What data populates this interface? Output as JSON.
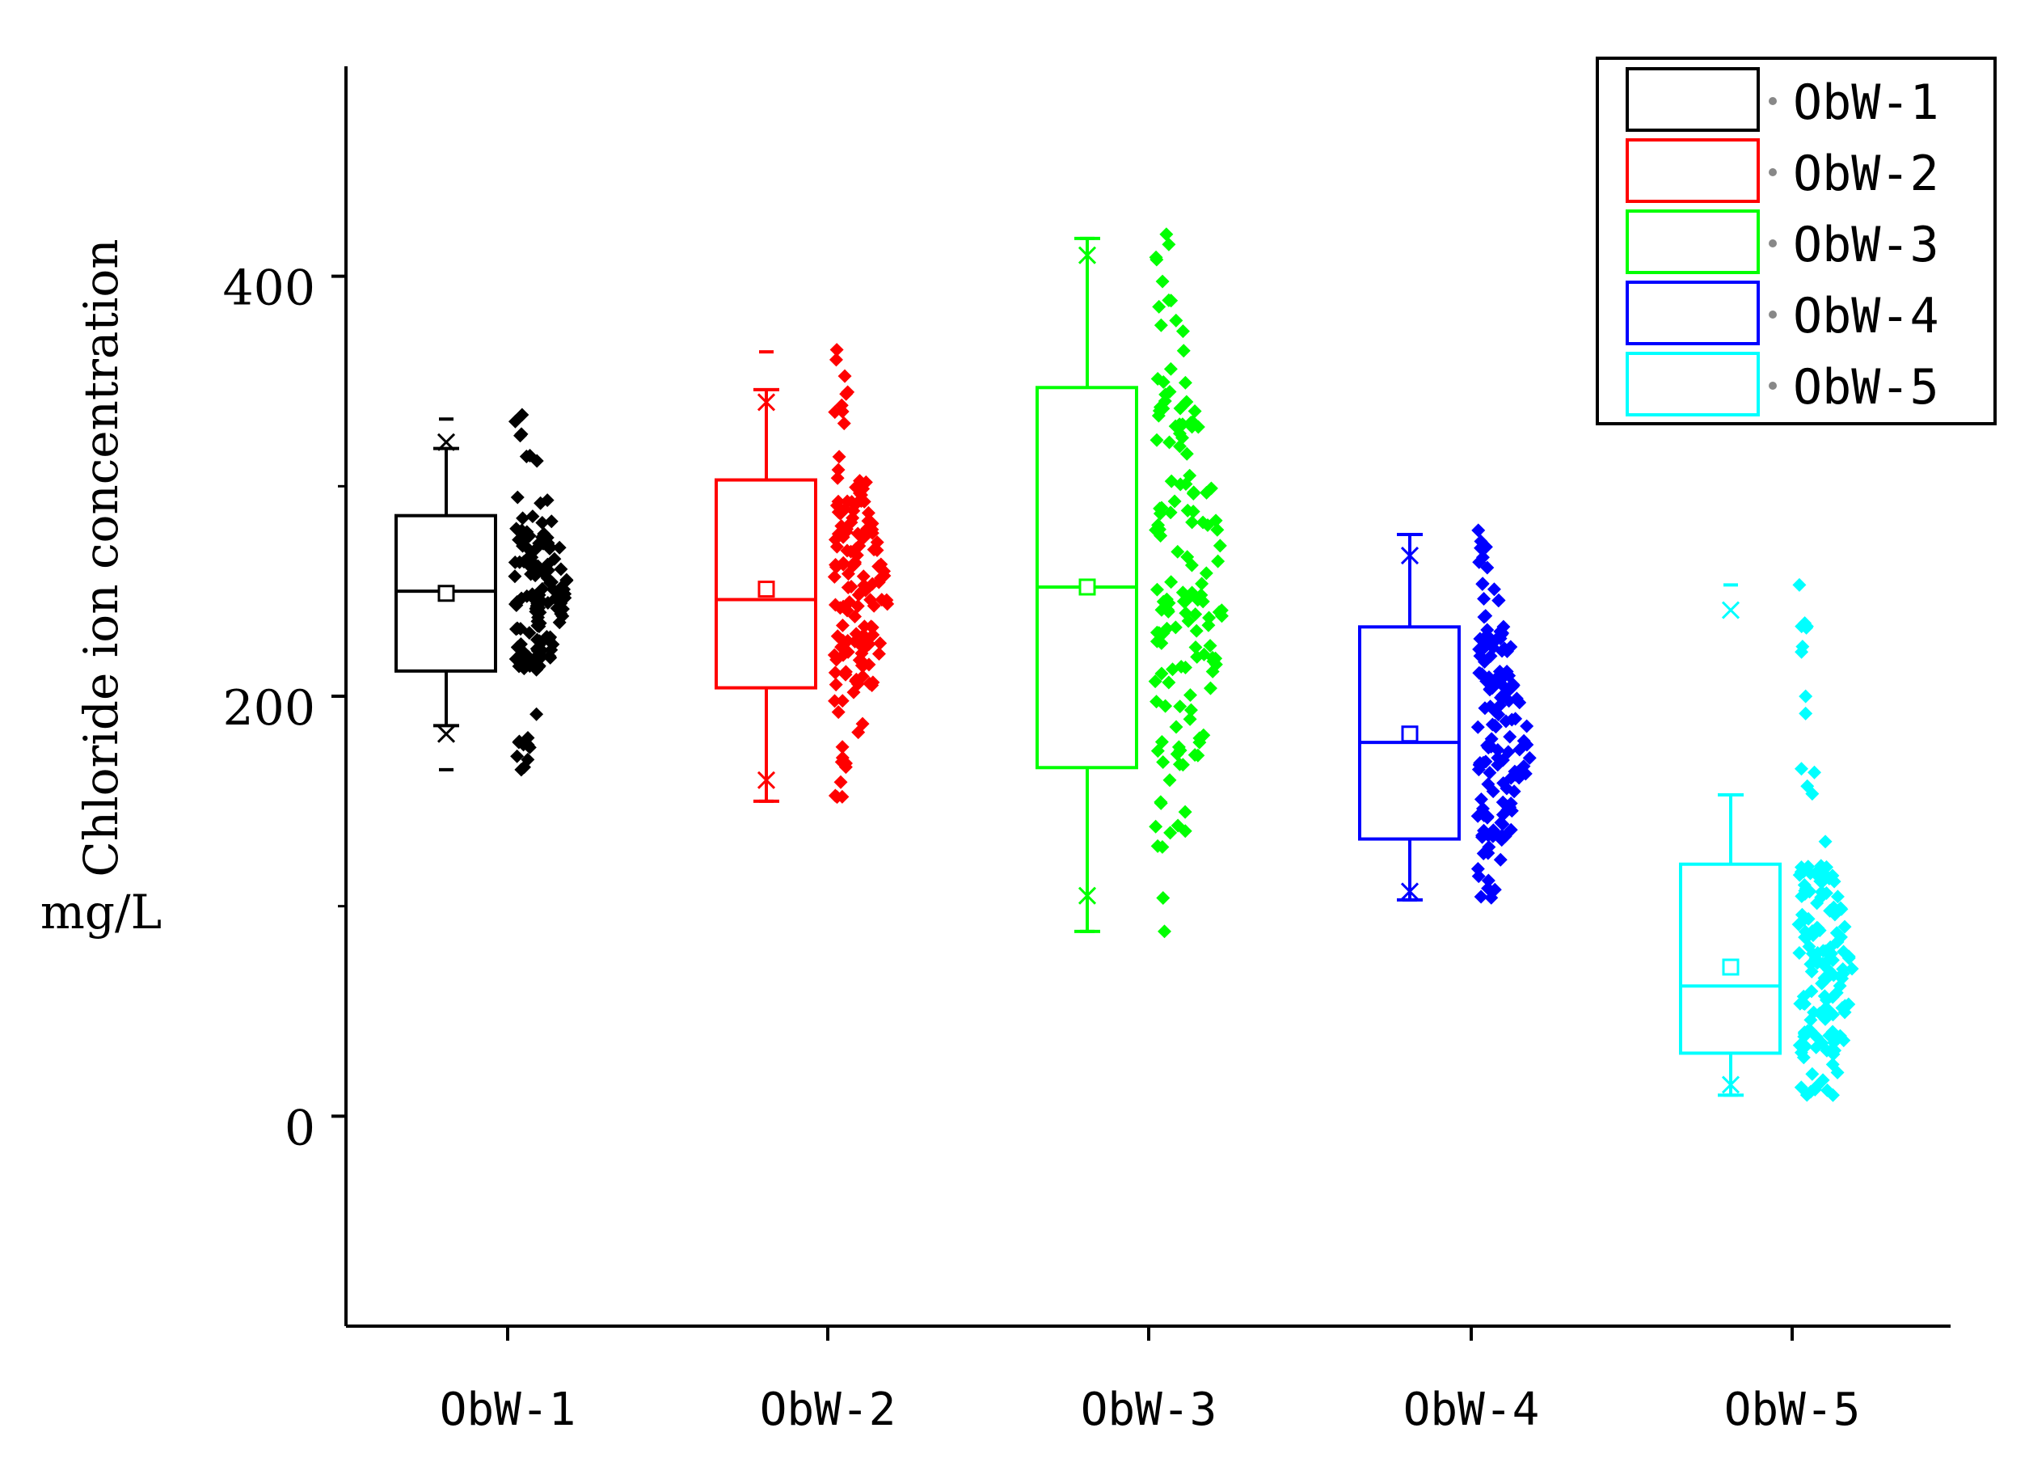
{
  "chart_data": {
    "type": "box",
    "title": "",
    "xlabel": "",
    "ylabel": "Chloride ion concentration",
    "yunit": "mg/L",
    "ylim": [
      -100,
      500
    ],
    "yticks": [
      0,
      200,
      400
    ],
    "ytick_labels": [
      "0",
      "200",
      "400"
    ],
    "minor_yticks": [
      100,
      300
    ],
    "categories": [
      "ObW-1",
      "ObW-2",
      "ObW-3",
      "ObW-4",
      "ObW-5"
    ],
    "legend": {
      "placement": "top-right",
      "entries": [
        "ObW-1",
        "ObW-2",
        "ObW-3",
        "ObW-4",
        "ObW-5"
      ]
    },
    "series": [
      {
        "name": "ObW-1",
        "color": "#000000",
        "q1": 212,
        "median": 250,
        "q3": 286,
        "mean": 249,
        "whisker_low": 186,
        "whisker_high": 318,
        "min": 165,
        "max": 332,
        "p1": 182,
        "p99": 321,
        "data_min": 165,
        "data_max": 334
      },
      {
        "name": "ObW-2",
        "color": "#ff0000",
        "q1": 204,
        "median": 246,
        "q3": 303,
        "mean": 251,
        "whisker_low": 150,
        "whisker_high": 346,
        "min": 150,
        "max": 364,
        "p1": 160,
        "p99": 340,
        "data_min": 152,
        "data_max": 365
      },
      {
        "name": "ObW-3",
        "color": "#00ff00",
        "q1": 166,
        "median": 252,
        "q3": 347,
        "mean": 252,
        "whisker_low": 88,
        "whisker_high": 418,
        "min": 88,
        "max": 418,
        "p1": 105,
        "p99": 410,
        "data_min": 88,
        "data_max": 420
      },
      {
        "name": "ObW-4",
        "color": "#0000ff",
        "q1": 132,
        "median": 178,
        "q3": 233,
        "mean": 182,
        "whisker_low": 103,
        "whisker_high": 277,
        "min": 103,
        "max": 277,
        "p1": 107,
        "p99": 267,
        "data_min": 104,
        "data_max": 279
      },
      {
        "name": "ObW-5",
        "color": "#00ffff",
        "q1": 30,
        "median": 62,
        "q3": 120,
        "mean": 71,
        "whisker_low": 10,
        "whisker_high": 153,
        "min": 10,
        "max": 253,
        "p1": 15,
        "p99": 241,
        "data_min": 10,
        "data_max": 253
      }
    ]
  }
}
